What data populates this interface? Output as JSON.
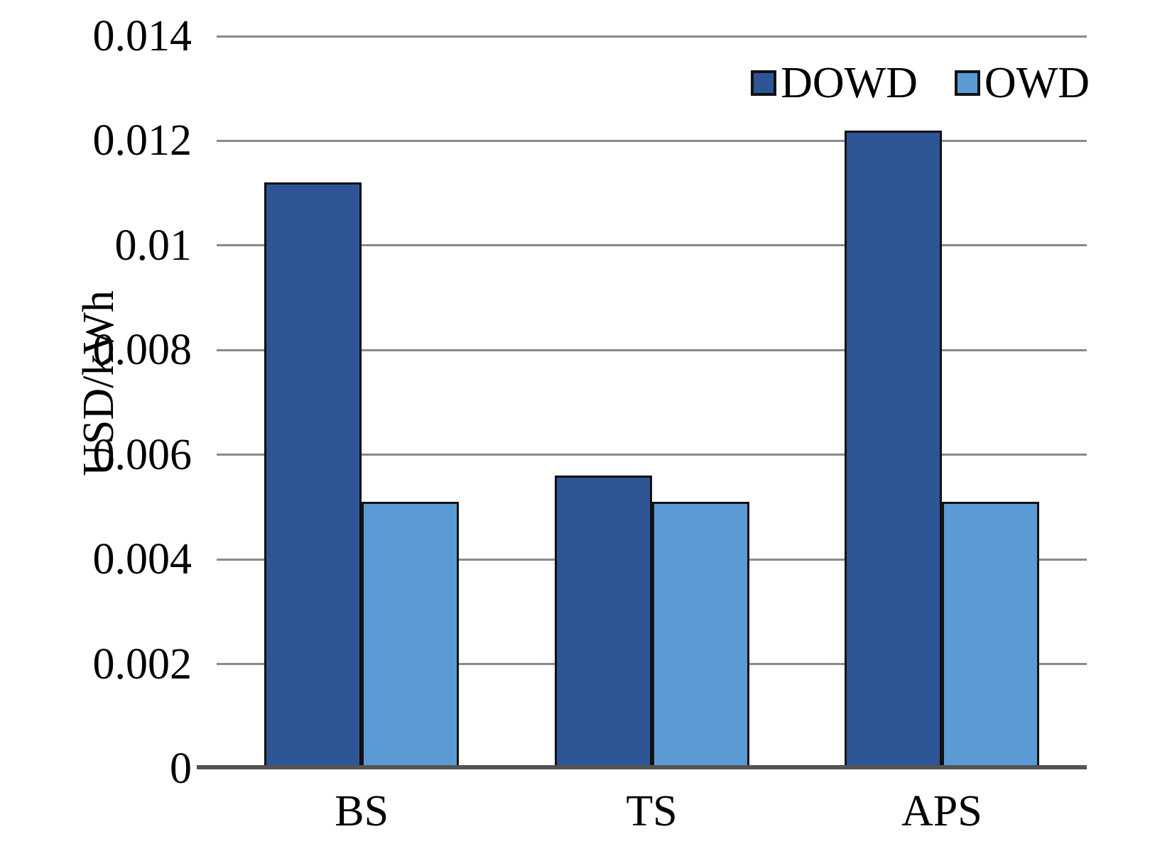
{
  "chart_data": {
    "type": "bar",
    "categories": [
      "BS",
      "TS",
      "APS"
    ],
    "series": [
      {
        "name": "DOWD",
        "color": "#2E5596",
        "values": [
          0.0112,
          0.0056,
          0.0122
        ]
      },
      {
        "name": "OWD",
        "color": "#5B9BD5",
        "values": [
          0.0051,
          0.0051,
          0.0051
        ]
      }
    ],
    "title": "",
    "xlabel": "",
    "ylabel": "USD/kWh",
    "ylim": [
      0,
      0.014
    ],
    "ytick_step": 0.002,
    "ytick_labels": [
      "0",
      "0.002",
      "0.004",
      "0.006",
      "0.008",
      "0.01",
      "0.012",
      "0.014"
    ],
    "grid": true,
    "legend_position": "top-right",
    "colors": {
      "gridline": "#8a8a8a",
      "axis_line": "#545454",
      "bar_border": "#111111",
      "text": "#000000",
      "background": "#ffffff"
    }
  }
}
